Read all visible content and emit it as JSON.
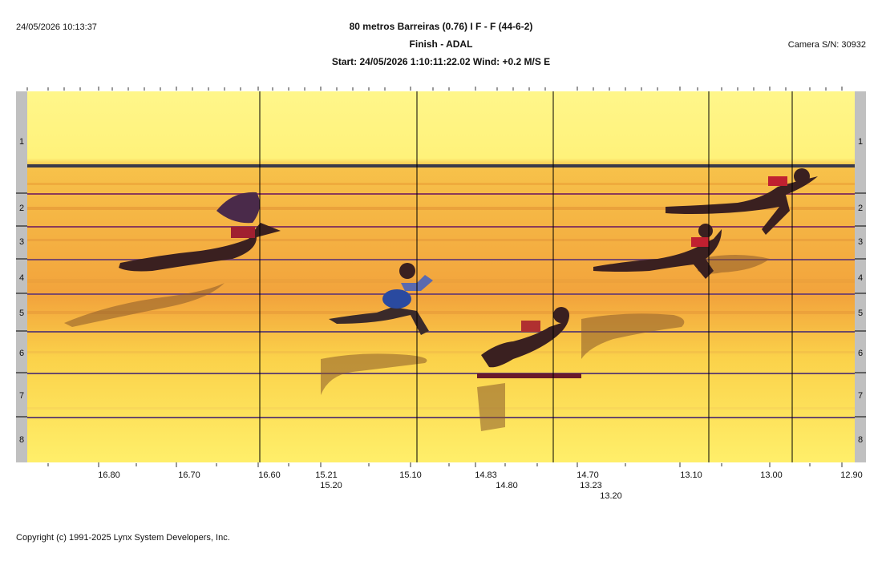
{
  "header": {
    "timestamp": "24/05/2026 10:13:37",
    "title": "80 metros Barreiras (0.76) I F - F (44-6-2)",
    "subtitle": "Finish - ADAL",
    "start_line": "Start: 24/05/2026 1:10:11:22.02    Wind: +0.2 M/S E",
    "camera": "Camera S/N: 30932"
  },
  "lanes": [
    "1",
    "2",
    "3",
    "4",
    "5",
    "6",
    "7",
    "8"
  ],
  "time_ticks": [
    {
      "label": "16.80",
      "row": 1
    },
    {
      "label": "16.70",
      "row": 1
    },
    {
      "label": "16.60",
      "row": 1
    },
    {
      "label": "15.21",
      "row": 1
    },
    {
      "label": "15.20",
      "row": 2
    },
    {
      "label": "15.10",
      "row": 1
    },
    {
      "label": "14.83",
      "row": 1
    },
    {
      "label": "14.80",
      "row": 2
    },
    {
      "label": "14.70",
      "row": 1
    },
    {
      "label": "13.23",
      "row": 2
    },
    {
      "label": "13.20",
      "row": 3
    },
    {
      "label": "13.10",
      "row": 1
    },
    {
      "label": "13.00",
      "row": 1
    },
    {
      "label": "12.90",
      "row": 1
    }
  ],
  "colors": {
    "sky": "#fff27a",
    "track_light": "#fbd24a",
    "track_orange": "#f2a33c",
    "lane_line": "#6a4a6a",
    "cursor": "#000000",
    "side_bar": "#c0c0c0"
  },
  "footer": {
    "copyright": "Copyright (c) 1991-2025 Lynx System Developers, Inc."
  }
}
